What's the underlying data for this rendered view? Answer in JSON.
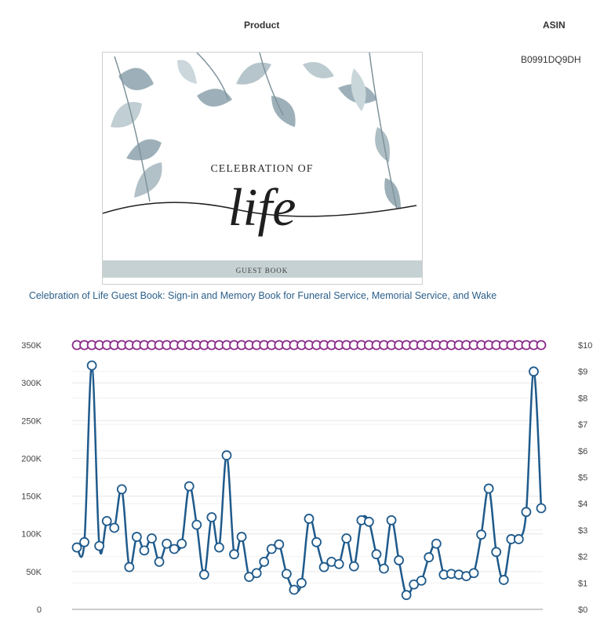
{
  "headers": {
    "product": "Product",
    "asin": "ASIN"
  },
  "product": {
    "asin": "B0991DQ9DH",
    "title": "Celebration of Life Guest Book: Sign-in and Memory Book for Funeral Service, Memorial Service, and Wake",
    "cover": {
      "line1": "CELEBRATION OF",
      "line2": "life",
      "band": "GUEST BOOK"
    }
  },
  "colors": {
    "rank_line": "#1f5a8b",
    "price_line": "#8b2a8b",
    "title_link": "#2b5f8a"
  },
  "chart_data": {
    "type": "line",
    "y_left_ticks": [
      "0",
      "50K",
      "100K",
      "150K",
      "200K",
      "250K",
      "300K",
      "350K"
    ],
    "y_right_ticks": [
      "$0",
      "$1",
      "$2",
      "$3",
      "$4",
      "$5",
      "$6",
      "$7",
      "$8",
      "$9",
      "$10"
    ],
    "ylim_left": [
      0,
      350000
    ],
    "ylim_right": [
      0,
      10
    ],
    "grid": true,
    "series": [
      {
        "axis": "left",
        "values": [
          82000,
          89000,
          323000,
          84000,
          117000,
          108000,
          159000,
          56000,
          96000,
          78000,
          94000,
          63000,
          87000,
          80000,
          87000,
          163000,
          112000,
          46000,
          122000,
          82000,
          204000,
          73000,
          96000,
          43000,
          48000,
          63000,
          80000,
          86000,
          47000,
          26000,
          35000,
          120000,
          89000,
          56000,
          63000,
          60000,
          94000,
          57000,
          118000,
          116000,
          73000,
          54000,
          118000,
          65000,
          19000,
          33000,
          38000,
          69000,
          87000,
          46000,
          47000,
          46000,
          44000,
          48000,
          99000,
          160000,
          76000,
          39000,
          93000,
          93000,
          129000,
          315000,
          134000
        ]
      },
      {
        "axis": "right",
        "values": [
          10,
          10,
          10,
          10,
          10,
          10,
          10,
          10,
          10,
          10,
          10,
          10,
          10,
          10,
          10,
          10,
          10,
          10,
          10,
          10,
          10,
          10,
          10,
          10,
          10,
          10,
          10,
          10,
          10,
          10,
          10,
          10,
          10,
          10,
          10,
          10,
          10,
          10,
          10,
          10,
          10,
          10,
          10,
          10,
          10,
          10,
          10,
          10,
          10,
          10,
          10,
          10,
          10,
          10,
          10,
          10,
          10,
          10,
          10,
          10,
          10,
          10,
          10
        ]
      }
    ]
  }
}
